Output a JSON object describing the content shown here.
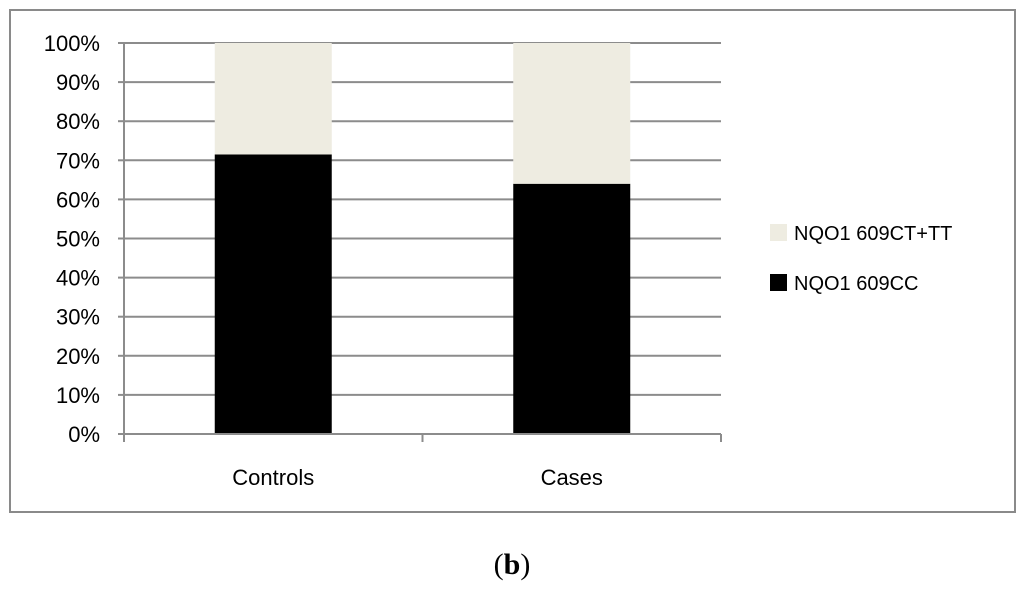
{
  "chart_data": {
    "type": "bar",
    "stacked": true,
    "percent": true,
    "categories": [
      "Controls",
      "Cases"
    ],
    "series": [
      {
        "name": "NQO1 609CC",
        "values": [
          71.5,
          64
        ],
        "color": "#000000"
      },
      {
        "name": "NQO1 609CT+TT",
        "values": [
          28.5,
          36
        ],
        "color": "#eeece1"
      }
    ],
    "yticks": [
      "0%",
      "10%",
      "20%",
      "30%",
      "40%",
      "50%",
      "60%",
      "70%",
      "80%",
      "90%",
      "100%"
    ],
    "ylim": [
      0,
      100
    ],
    "grid": true,
    "legend_position": "right",
    "legend_order": [
      "NQO1 609CT+TT",
      "NQO1 609CC"
    ]
  },
  "panel_label": {
    "open": "(",
    "letter": "b",
    "close": ")"
  }
}
